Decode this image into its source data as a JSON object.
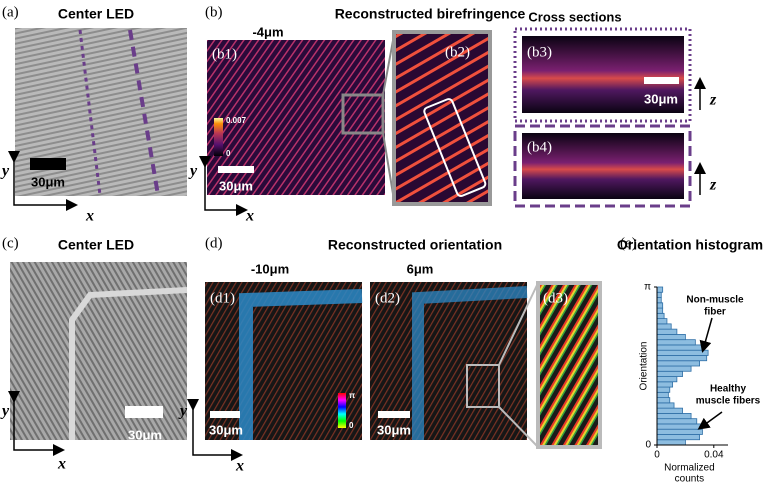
{
  "panels": {
    "a": {
      "label": "(a)",
      "title": "Center LED",
      "scale_bar": "30μm",
      "x_axis": "x",
      "y_axis": "y"
    },
    "b": {
      "label": "(b)",
      "title": "Reconstructed birefringence",
      "depth": "-4μm",
      "cross_sections_title": "Cross sections",
      "b1": {
        "label": "(b1)",
        "scale_bar": "30μm",
        "colorbar_max": 0.007,
        "colorbar_min": 0,
        "x_axis": "x",
        "y_axis": "y"
      },
      "b2": {
        "label": "(b2)"
      },
      "b3": {
        "label": "(b3)",
        "scale_bar": "30μm",
        "z_axis": "z"
      },
      "b4": {
        "label": "(b4)",
        "z_axis": "z"
      }
    },
    "c": {
      "label": "(c)",
      "title": "Center LED",
      "scale_bar": "30μm",
      "x_axis": "x",
      "y_axis": "y"
    },
    "d": {
      "label": "(d)",
      "title": "Reconstructed orientation",
      "d1": {
        "label": "(d1)",
        "depth": "-10μm",
        "scale_bar": "30μm",
        "colorbar_max": "π",
        "colorbar_min": 0,
        "x_axis": "x",
        "y_axis": "y"
      },
      "d2": {
        "label": "(d2)",
        "depth": "6μm",
        "scale_bar": "30μm"
      },
      "d3": {
        "label": "(d3)"
      }
    },
    "e": {
      "label": "(e)",
      "title": "Orientation histogram"
    }
  },
  "chart_data": {
    "type": "histogram",
    "orientation": "horizontal",
    "ylabel": "Orientation",
    "xlabel": [
      "Normalized",
      "counts"
    ],
    "bins": [
      0,
      0.1047,
      0.2094,
      0.3142,
      0.4189,
      0.5236,
      0.6283,
      0.733,
      0.8378,
      0.9425,
      1.0472,
      1.1519,
      1.2566,
      1.3614,
      1.4661,
      1.5708,
      1.6755,
      1.7802,
      1.885,
      1.9897,
      2.0944,
      2.1991,
      2.3038,
      2.4086,
      2.5133,
      2.618,
      2.7227,
      2.8274,
      2.9322,
      3.0369,
      3.1416
    ],
    "values": [
      0.02,
      0.03,
      0.032,
      0.031,
      0.028,
      0.024,
      0.018,
      0.012,
      0.009,
      0.008,
      0.009,
      0.011,
      0.014,
      0.018,
      0.024,
      0.03,
      0.035,
      0.036,
      0.033,
      0.027,
      0.02,
      0.014,
      0.01,
      0.007,
      0.005,
      0.004,
      0.004,
      0.003,
      0.003,
      0.004
    ],
    "color": "#8dbde0",
    "edge_color": "#2f6fa6",
    "xlim": [
      0,
      0.05
    ],
    "ylim": [
      0,
      3.1416
    ],
    "xticks": [
      0,
      0.04
    ],
    "yticks": [
      0,
      {
        "value": 3.1416,
        "label": "π"
      }
    ],
    "annotations": [
      {
        "text": [
          "Non-muscle",
          "fiber"
        ]
      },
      {
        "text": [
          "Healthy",
          "muscle fibers"
        ]
      }
    ]
  }
}
